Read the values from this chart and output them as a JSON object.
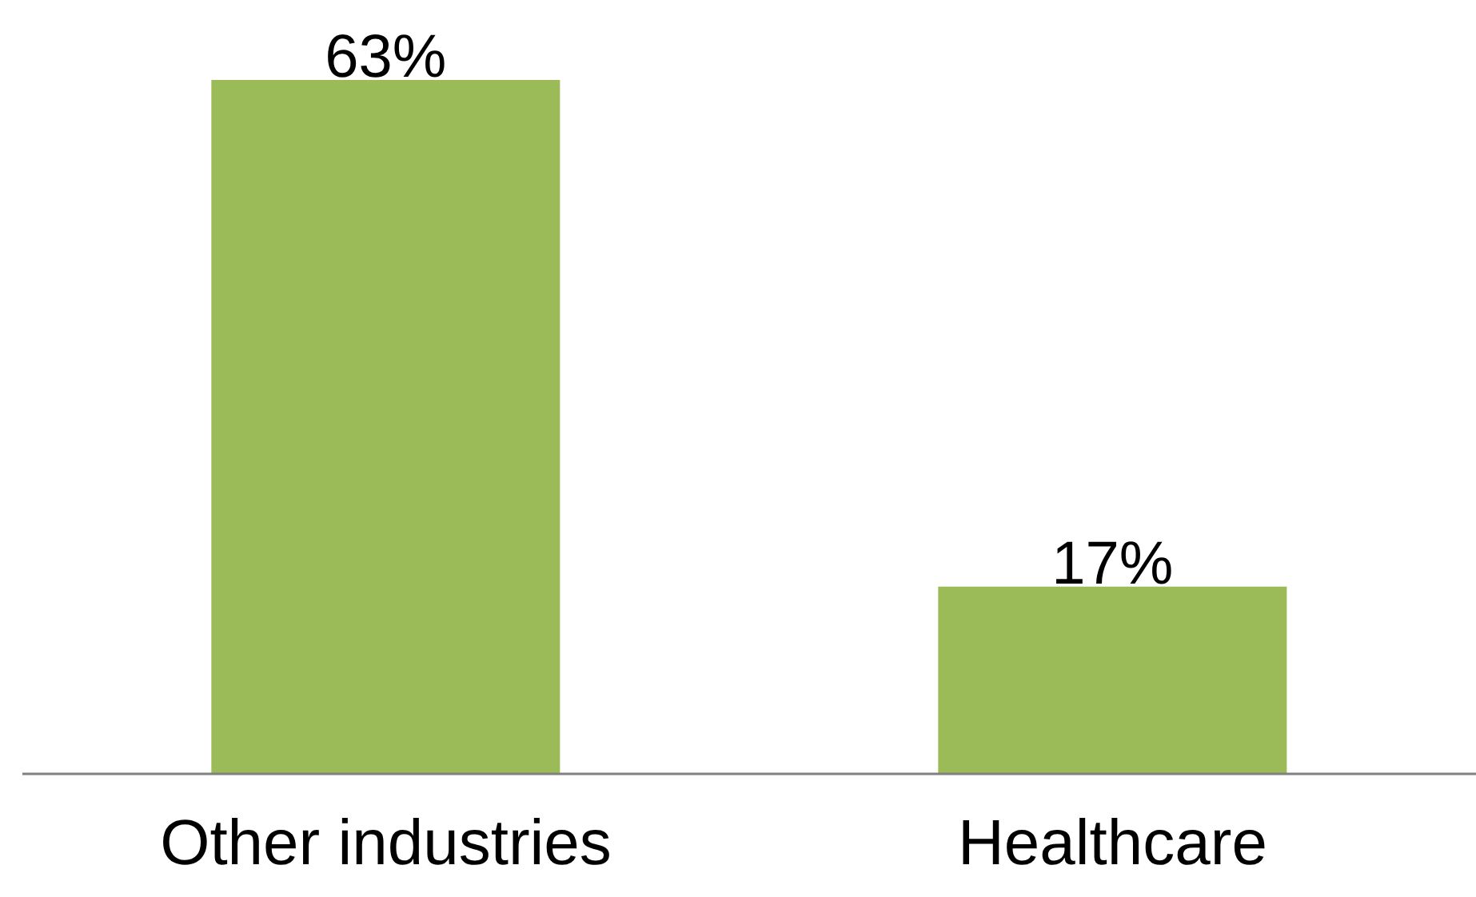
{
  "chart_data": {
    "type": "bar",
    "categories": [
      "Other industries",
      "Healthcare"
    ],
    "values": [
      63,
      17
    ],
    "color": "#9bbb59",
    "value_labels": [
      "63%",
      "17%"
    ],
    "grid": false
  }
}
